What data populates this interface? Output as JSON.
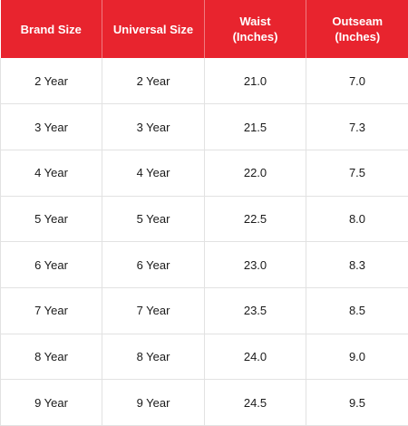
{
  "table": {
    "headers": [
      {
        "line1": "Brand Size",
        "line2": ""
      },
      {
        "line1": "Universal Size",
        "line2": ""
      },
      {
        "line1": "Waist",
        "line2": "(Inches)"
      },
      {
        "line1": "Outseam",
        "line2": "(Inches)"
      }
    ],
    "rows": [
      [
        "2 Year",
        "2 Year",
        "21.0",
        "7.0"
      ],
      [
        "3 Year",
        "3 Year",
        "21.5",
        "7.3"
      ],
      [
        "4 Year",
        "4 Year",
        "22.0",
        "7.5"
      ],
      [
        "5 Year",
        "5 Year",
        "22.5",
        "8.0"
      ],
      [
        "6 Year",
        "6 Year",
        "23.0",
        "8.3"
      ],
      [
        "7 Year",
        "7 Year",
        "23.5",
        "8.5"
      ],
      [
        "8 Year",
        "8 Year",
        "24.0",
        "9.0"
      ],
      [
        "9 Year",
        "9 Year",
        "24.5",
        "9.5"
      ]
    ]
  },
  "colors": {
    "header_bg": "#e8242e",
    "header_text": "#ffffff",
    "grid_line": "#e2e2e2",
    "cell_text": "#1a1a1a"
  }
}
